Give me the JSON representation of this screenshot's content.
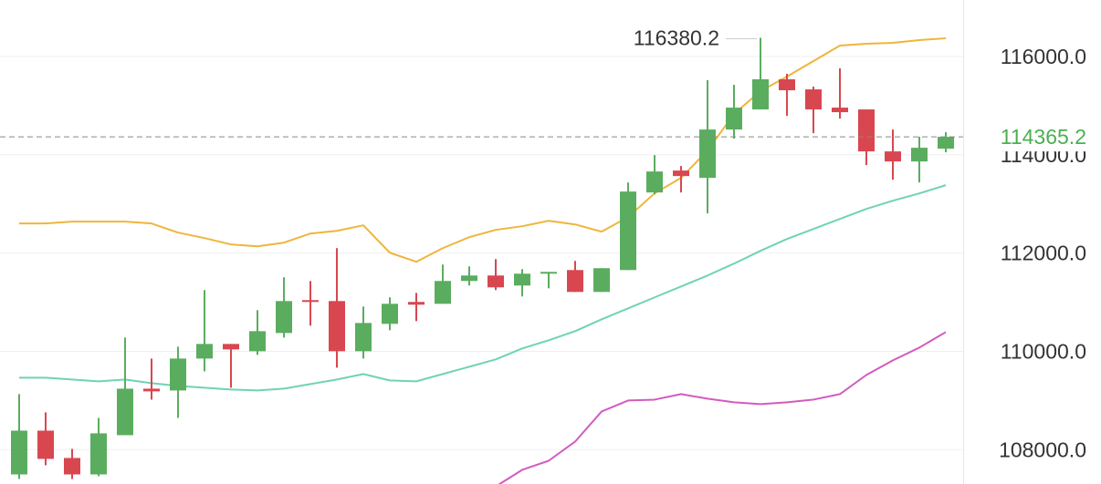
{
  "chart_data": {
    "type": "candlestick",
    "ylim": [
      107300,
      117150
    ],
    "yticks": [
      {
        "value": 108000,
        "label": "108000.0"
      },
      {
        "value": 110000,
        "label": "110000.0"
      },
      {
        "value": 112000,
        "label": "112000.0"
      },
      {
        "value": 114000,
        "label": "114000.0"
      },
      {
        "value": 116000,
        "label": "116000.0"
      }
    ],
    "grid": true,
    "up_color": "#5aad5e",
    "down_color": "#d8474f",
    "open": [
      107495,
      108386,
      107830,
      107495,
      108294,
      109240,
      109203,
      109853,
      110150,
      110002,
      110373,
      111042,
      111023,
      110002,
      110559,
      111005,
      110967,
      111432,
      111543,
      111339,
      111580,
      111654,
      111209,
      111654,
      113233,
      113679,
      113530,
      114514,
      114923,
      115536,
      115331,
      114960,
      114923,
      114069,
      113864,
      114124
    ],
    "high": [
      109130,
      108758,
      108015,
      108646,
      110280,
      109853,
      110095,
      111246,
      110150,
      110838,
      111506,
      111432,
      112100,
      110912,
      111098,
      111190,
      111766,
      111729,
      111878,
      111673,
      111617,
      111840,
      111692,
      113437,
      113994,
      113772,
      115517,
      115424,
      116380.2,
      115647,
      115387,
      115759,
      114923,
      114514,
      114366,
      114459
    ],
    "low": [
      107402,
      107681,
      107402,
      107458,
      108294,
      109017,
      108646,
      109593,
      109259,
      109928,
      110280,
      110522,
      109668,
      109853,
      110429,
      110615,
      110967,
      111339,
      111246,
      111116,
      111283,
      111209,
      111209,
      111654,
      113196,
      113233,
      112806,
      114329,
      114923,
      114793,
      114440,
      114737,
      113790,
      113493,
      113437,
      114050
    ],
    "close": [
      108386,
      107811,
      107495,
      108331,
      109240,
      109185,
      109853,
      110150,
      110039,
      110410,
      111023,
      111005,
      110002,
      110577,
      110967,
      110949,
      111432,
      111543,
      111302,
      111580,
      111617,
      111209,
      111692,
      113252,
      113660,
      113567,
      114514,
      114960,
      115536,
      115313,
      114923,
      114867,
      114069,
      113864,
      114143,
      114365.2
    ],
    "series": [
      {
        "color": "#f0b53c",
        "values": [
          112602,
          112602,
          112639,
          112639,
          112639,
          112602,
          112416,
          112305,
          112175,
          112137,
          112212,
          112397,
          112453,
          112565,
          112007,
          111822,
          112100,
          112323,
          112472,
          112546,
          112657,
          112583,
          112435,
          112732,
          113214,
          113530,
          114087,
          114830,
          115294,
          115591,
          115907,
          116223,
          116260,
          116279,
          116334,
          116371
        ]
      },
      {
        "color": "#6fd3b5",
        "values": [
          109463,
          109463,
          109426,
          109389,
          109426,
          109352,
          109296,
          109259,
          109222,
          109203,
          109241,
          109333,
          109426,
          109538,
          109408,
          109389,
          109538,
          109686,
          109835,
          110058,
          110225,
          110410,
          110652,
          110875,
          111098,
          111320,
          111543,
          111785,
          112045,
          112286,
          112490,
          112695,
          112899,
          113066,
          113214,
          113382
        ]
      },
      {
        "color": "#d25bbf",
        "values": [
          null,
          null,
          null,
          null,
          null,
          null,
          null,
          null,
          null,
          null,
          null,
          null,
          null,
          null,
          null,
          null,
          null,
          null,
          107250,
          107588,
          107773,
          108163,
          108776,
          108999,
          109017,
          109129,
          109036,
          108962,
          108925,
          108962,
          109017,
          109129,
          109519,
          109816,
          110076,
          110392
        ]
      }
    ],
    "max_price": 116380.2,
    "last_price": 114365.2,
    "last_price_color": "#4caf50"
  }
}
